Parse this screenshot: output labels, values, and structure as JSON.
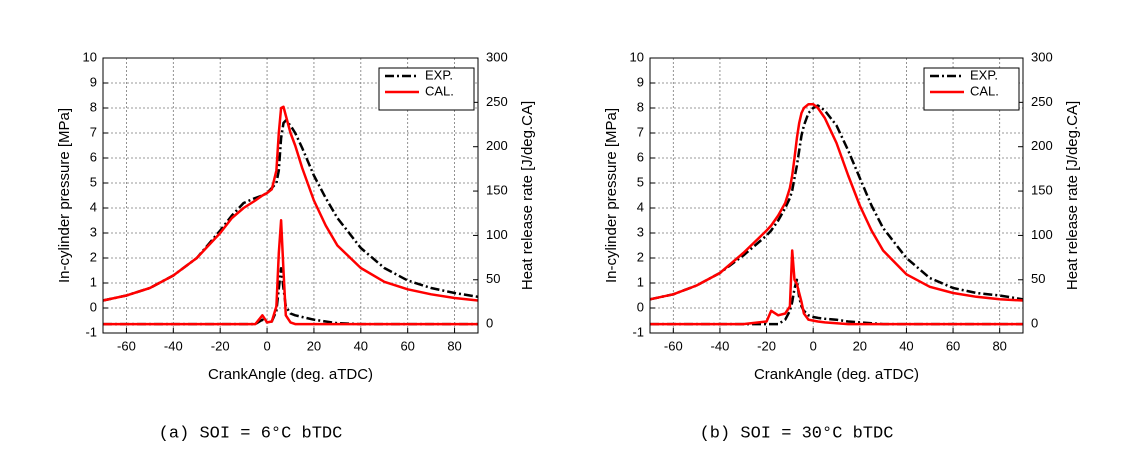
{
  "chart_data": [
    {
      "type": "line",
      "caption": "(a) SOI = 6°C bTDC",
      "xlabel": "CrankAngle (deg. aTDC)",
      "ylabel": "In-cylinder pressure [MPa]",
      "y2label": "Heat release rate [J/deg.CA]",
      "x": [
        -70,
        -60,
        -50,
        -40,
        -30,
        -20,
        -15,
        -10,
        -5,
        -2,
        0,
        2,
        4,
        5,
        6,
        7,
        8,
        10,
        12,
        15,
        20,
        25,
        30,
        40,
        50,
        60,
        70,
        80,
        90
      ],
      "series": [
        {
          "name": "EXP.",
          "color": "#000000",
          "style": "dashdot",
          "values": [
            0.3,
            0.5,
            0.8,
            1.3,
            2.0,
            3.1,
            3.7,
            4.2,
            4.4,
            4.5,
            4.6,
            4.8,
            5.0,
            5.5,
            6.8,
            7.4,
            7.5,
            7.3,
            7.0,
            6.4,
            5.3,
            4.4,
            3.6,
            2.4,
            1.6,
            1.1,
            0.8,
            0.6,
            0.45
          ]
        },
        {
          "name": "CAL.",
          "color": "#ff0000",
          "style": "solid",
          "values": [
            0.3,
            0.5,
            0.8,
            1.3,
            2.0,
            3.0,
            3.6,
            4.0,
            4.3,
            4.5,
            4.6,
            4.75,
            5.5,
            7.0,
            8.0,
            8.05,
            7.7,
            7.0,
            6.5,
            5.6,
            4.3,
            3.3,
            2.5,
            1.6,
            1.05,
            0.75,
            0.55,
            0.4,
            0.3
          ]
        },
        {
          "color": "#000000",
          "style": "dashdot",
          "axis": "y2",
          "values": [
            0,
            0,
            0,
            0,
            0,
            0,
            0,
            0,
            0,
            5,
            2,
            3,
            15,
            40,
            63,
            40,
            20,
            12,
            10,
            8,
            5,
            3,
            1,
            0,
            0,
            0,
            0,
            0,
            0
          ]
        },
        {
          "color": "#ff0000",
          "style": "solid",
          "axis": "y2",
          "values": [
            0,
            0,
            0,
            0,
            0,
            0,
            0,
            0,
            0,
            10,
            2,
            3,
            20,
            80,
            117,
            60,
            10,
            2,
            0,
            0,
            0,
            0,
            0,
            0,
            0,
            0,
            0,
            0,
            0
          ]
        }
      ],
      "xlim": [
        -70,
        90
      ],
      "xticks": [
        -60,
        -40,
        -20,
        0,
        20,
        40,
        60,
        80
      ],
      "ylim": [
        -1,
        10
      ],
      "yticks": [
        -1,
        0,
        1,
        2,
        3,
        4,
        5,
        6,
        7,
        8,
        9,
        10
      ],
      "y2lim": [
        -10,
        300
      ],
      "y2ticks": [
        0,
        50,
        100,
        150,
        200,
        250,
        300
      ],
      "grid": true,
      "legend": "upper right"
    },
    {
      "type": "line",
      "caption": "(b) SOI = 30°C bTDC",
      "xlabel": "CrankAngle (deg. aTDC)",
      "ylabel": "In-cylinder pressure [MPa]",
      "y2label": "Heat release rate [J/deg.CA]",
      "x": [
        -70,
        -60,
        -50,
        -40,
        -30,
        -20,
        -18,
        -15,
        -12,
        -10,
        -9,
        -8,
        -7,
        -6,
        -5,
        -4,
        -2,
        0,
        2,
        5,
        10,
        15,
        20,
        25,
        30,
        40,
        50,
        60,
        70,
        80,
        90
      ],
      "series": [
        {
          "name": "EXP.",
          "color": "#000000",
          "style": "dashdot",
          "values": [
            0.35,
            0.55,
            0.9,
            1.4,
            2.1,
            2.9,
            3.1,
            3.5,
            4.0,
            4.4,
            4.7,
            5.2,
            5.7,
            6.3,
            6.9,
            7.3,
            7.8,
            8.0,
            8.1,
            7.9,
            7.3,
            6.3,
            5.2,
            4.1,
            3.2,
            2.0,
            1.2,
            0.8,
            0.6,
            0.5,
            0.35
          ]
        },
        {
          "name": "CAL.",
          "color": "#ff0000",
          "style": "solid",
          "values": [
            0.35,
            0.55,
            0.9,
            1.4,
            2.2,
            3.1,
            3.3,
            3.7,
            4.2,
            4.8,
            5.3,
            6.0,
            6.8,
            7.4,
            7.8,
            8.0,
            8.15,
            8.15,
            8.0,
            7.6,
            6.6,
            5.3,
            4.1,
            3.1,
            2.3,
            1.35,
            0.85,
            0.6,
            0.45,
            0.35,
            0.3
          ]
        },
        {
          "color": "#000000",
          "style": "dashdot",
          "axis": "y2",
          "values": [
            0,
            0,
            0,
            0,
            0,
            0,
            0,
            0,
            5,
            15,
            25,
            40,
            50,
            30,
            20,
            15,
            10,
            8,
            7,
            6,
            5,
            3,
            2,
            1,
            0,
            0,
            0,
            0,
            0,
            0,
            0
          ]
        },
        {
          "color": "#ff0000",
          "style": "solid",
          "axis": "y2",
          "values": [
            0,
            0,
            0,
            0,
            0,
            3,
            15,
            10,
            12,
            20,
            83,
            50,
            45,
            35,
            25,
            12,
            5,
            4,
            3,
            2,
            1,
            0,
            0,
            0,
            0,
            0,
            0,
            0,
            0,
            0,
            0
          ]
        }
      ],
      "xlim": [
        -70,
        90
      ],
      "xticks": [
        -60,
        -40,
        -20,
        0,
        20,
        40,
        60,
        80
      ],
      "ylim": [
        -1,
        10
      ],
      "yticks": [
        -1,
        0,
        1,
        2,
        3,
        4,
        5,
        6,
        7,
        8,
        9,
        10
      ],
      "y2lim": [
        -10,
        300
      ],
      "y2ticks": [
        0,
        50,
        100,
        150,
        200,
        250,
        300
      ],
      "grid": true,
      "legend": "upper right"
    }
  ]
}
